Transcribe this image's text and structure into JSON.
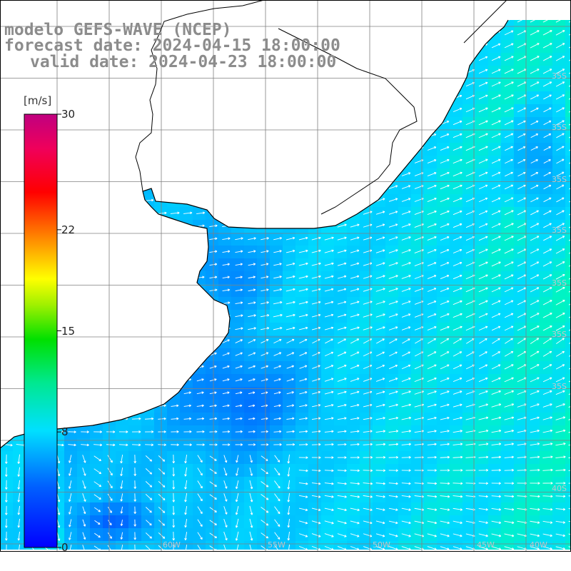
{
  "title": {
    "line1": "modelo GEFS-WAVE (NCEP)",
    "line2": "forecast date: 2024-04-15 18:00:00",
    "line3": "valid date: 2024-04-23 18:00:00"
  },
  "colorbar": {
    "unit": "[m/s]",
    "min": 0,
    "max": 30,
    "ticks": [
      {
        "label": "30",
        "value": 30
      },
      {
        "label": "22",
        "value": 22
      },
      {
        "label": "15",
        "value": 15
      },
      {
        "label": "8",
        "value": 8
      },
      {
        "label": "0",
        "value": 0
      }
    ]
  },
  "lat_labels": [
    "35S",
    "35S",
    "35S",
    "35S",
    "35S",
    "35S",
    "35S",
    "40S"
  ],
  "lon_labels": [
    "60W",
    "55W",
    "50W",
    "45W",
    "40W"
  ],
  "colors": {
    "land": "#ffffff",
    "coastline": "#000000",
    "grid": "#808080",
    "arrow": "#ffffff",
    "title": "#8c8c8c"
  },
  "field": "wind speed with direction arrows"
}
